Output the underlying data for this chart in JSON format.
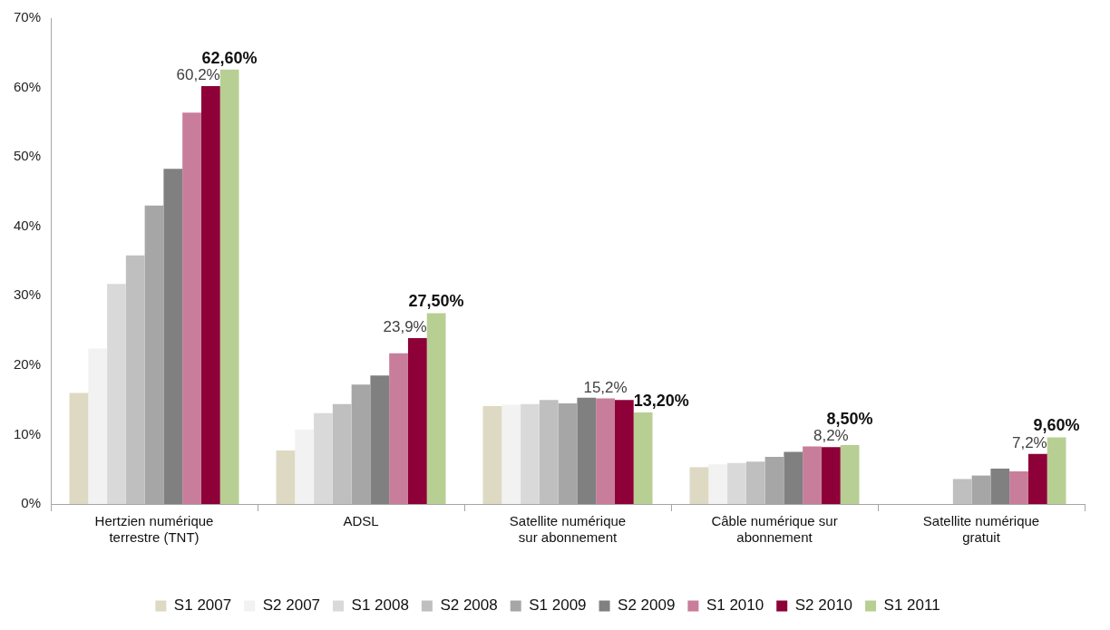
{
  "chart_data": {
    "type": "bar",
    "categories": [
      "Hertzien numérique terrestre (TNT)",
      "ADSL",
      "Satellite numérique sur abonnement",
      "Câble numérique sur abonnement",
      "Satellite numérique gratuit"
    ],
    "series": [
      {
        "name": "S1 2007",
        "color": "#ddd9c3",
        "values": [
          16.0,
          7.7,
          14.1,
          5.3,
          null
        ]
      },
      {
        "name": "S2 2007",
        "color": "#f2f2f2",
        "values": [
          22.4,
          10.7,
          14.3,
          5.7,
          null
        ]
      },
      {
        "name": "S1 2008",
        "color": "#d9d9d9",
        "values": [
          31.7,
          13.1,
          14.4,
          5.9,
          null
        ]
      },
      {
        "name": "S2 2008",
        "color": "#bfbfbf",
        "values": [
          35.8,
          14.4,
          15.0,
          6.1,
          3.6
        ]
      },
      {
        "name": "S1 2009",
        "color": "#a6a6a6",
        "values": [
          43.0,
          17.2,
          14.5,
          6.8,
          4.1
        ]
      },
      {
        "name": "S2 2009",
        "color": "#808080",
        "values": [
          48.3,
          18.5,
          15.3,
          7.5,
          5.1
        ]
      },
      {
        "name": "S1 2010",
        "color": "#c87d9a",
        "values": [
          56.4,
          21.7,
          15.2,
          8.3,
          4.7
        ],
        "value_labels": [
          null,
          null,
          "15,2%",
          null,
          null
        ]
      },
      {
        "name": "S2 2010",
        "color": "#8e0038",
        "values": [
          60.2,
          23.9,
          15.0,
          8.2,
          7.2
        ],
        "value_labels": [
          "60,2%",
          "23,9%",
          null,
          "8,2%",
          "7,2%"
        ]
      },
      {
        "name": "S1 2011",
        "color": "#b8cf94",
        "values": [
          62.6,
          27.5,
          13.2,
          8.5,
          9.6
        ],
        "value_labels": [
          "62,60%",
          "27,50%",
          "13,20%",
          "8,50%",
          "9,60%"
        ]
      }
    ],
    "ylim": [
      0,
      70
    ],
    "yticks": [
      {
        "value": 0,
        "label": "0%"
      },
      {
        "value": 10,
        "label": "10%"
      },
      {
        "value": 20,
        "label": "20%"
      },
      {
        "value": 30,
        "label": "30%"
      },
      {
        "value": 40,
        "label": "40%"
      },
      {
        "value": 50,
        "label": "50%"
      },
      {
        "value": 60,
        "label": "60%"
      },
      {
        "value": 70,
        "label": "70%"
      }
    ],
    "grid": false,
    "legend": "bottom"
  }
}
